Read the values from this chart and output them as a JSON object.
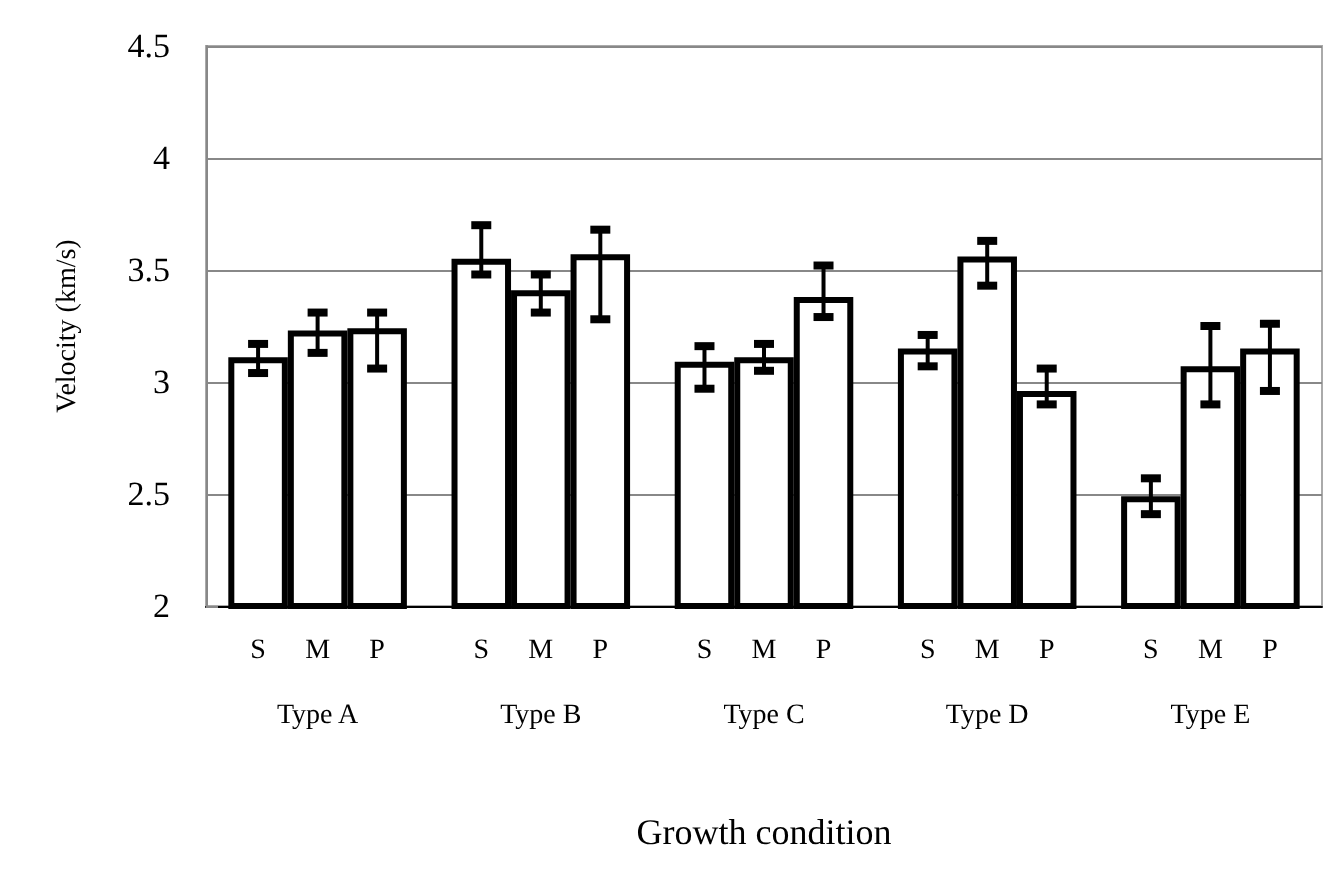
{
  "chart_data": {
    "type": "bar",
    "xlabel": "Growth condition",
    "ylabel": "Velocity (km/s)",
    "categories": [
      "Type A",
      "Type B",
      "Type C",
      "Type D",
      "Type E"
    ],
    "series": [
      {
        "name": "S",
        "color": "#ffffff",
        "values": [
          3.11,
          3.55,
          3.09,
          3.15,
          2.49
        ],
        "errors": [
          [
            3.04,
            3.17
          ],
          [
            3.48,
            3.7
          ],
          [
            2.97,
            3.16
          ],
          [
            3.07,
            3.21
          ],
          [
            2.41,
            2.57
          ]
        ]
      },
      {
        "name": "M",
        "color": "#ffffff",
        "values": [
          3.23,
          3.41,
          3.11,
          3.56,
          3.07
        ],
        "errors": [
          [
            3.13,
            3.31
          ],
          [
            3.31,
            3.48
          ],
          [
            3.05,
            3.17
          ],
          [
            3.43,
            3.63
          ],
          [
            2.9,
            3.25
          ]
        ]
      },
      {
        "name": "P",
        "color": "#ffffff",
        "values": [
          3.24,
          3.57,
          3.38,
          2.96,
          3.15
        ],
        "errors": [
          [
            3.06,
            3.31
          ],
          [
            3.28,
            3.68
          ],
          [
            3.29,
            3.52
          ],
          [
            2.9,
            3.06
          ],
          [
            2.96,
            3.26
          ]
        ]
      }
    ],
    "ylim": [
      2,
      4.5
    ],
    "yticks": [
      2,
      2.5,
      3,
      3.5,
      4,
      4.5
    ],
    "grid": "y",
    "legend": false
  }
}
